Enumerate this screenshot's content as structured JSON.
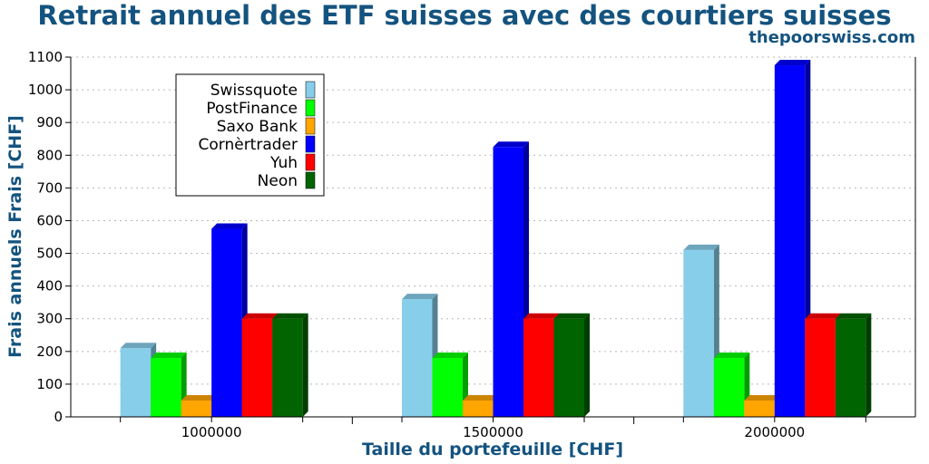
{
  "chart_data": {
    "type": "bar",
    "title": "Retrait annuel des ETF suisses avec des courtiers suisses",
    "subtitle": "thepoorswiss.com",
    "xlabel": "Taille du portefeuille [CHF]",
    "ylabel": "Frais annuels Frais [CHF]",
    "categories": [
      "1000000",
      "1500000",
      "2000000"
    ],
    "ylim": [
      0,
      1100
    ],
    "yticks": [
      0,
      100,
      200,
      300,
      400,
      500,
      600,
      700,
      800,
      900,
      1000,
      1100
    ],
    "grid": true,
    "legend_position": "top-left",
    "series": [
      {
        "name": "Swissquote",
        "color": "#87ceeb",
        "values": [
          210,
          360,
          510
        ]
      },
      {
        "name": "PostFinance",
        "color": "#00ff00",
        "values": [
          180,
          180,
          180
        ]
      },
      {
        "name": "Saxo Bank",
        "color": "#ffa500",
        "values": [
          50,
          50,
          50
        ]
      },
      {
        "name": "Cornèrtrader",
        "color": "#0000ff",
        "values": [
          575,
          825,
          1075
        ]
      },
      {
        "name": "Yuh",
        "color": "#ff0000",
        "values": [
          300,
          300,
          300
        ]
      },
      {
        "name": "Neon",
        "color": "#006400",
        "values": [
          300,
          300,
          300
        ]
      }
    ]
  }
}
